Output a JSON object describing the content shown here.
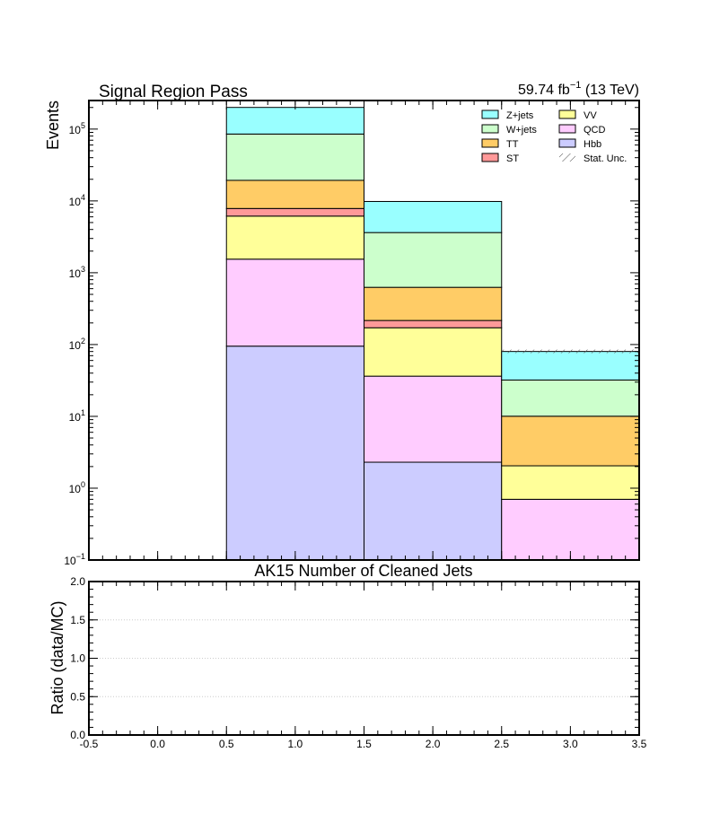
{
  "chart_data": [
    {
      "type": "bar",
      "stacked": true,
      "histogram": true,
      "title": "Signal Region Pass",
      "luminosity": "59.74 fb",
      "luminosity_exponent": "−1",
      "energy": "(13 TeV)",
      "ylabel": "Events",
      "xlabel": "AK15 Number of Cleaned Jets",
      "yscale": "log",
      "ylim": [
        0.1,
        250000
      ],
      "xlim": [
        -0.5,
        3.5
      ],
      "bin_edges": [
        -0.5,
        0.5,
        1.5,
        2.5,
        3.5
      ],
      "y_ticks": [
        {
          "value": 0.1,
          "base": "10",
          "exp": "−1"
        },
        {
          "value": 1,
          "base": "10",
          "exp": "0"
        },
        {
          "value": 10,
          "base": "10",
          "exp": "1"
        },
        {
          "value": 100,
          "base": "10",
          "exp": "2"
        },
        {
          "value": 1000,
          "base": "10",
          "exp": "3"
        },
        {
          "value": 10000,
          "base": "10",
          "exp": "4"
        },
        {
          "value": 100000,
          "base": "10",
          "exp": "5"
        }
      ],
      "series": [
        {
          "name": "Hbb",
          "color": "#ccccff",
          "values": [
            0,
            95,
            2.3,
            0
          ]
        },
        {
          "name": "QCD",
          "color": "#ffccff",
          "values": [
            0,
            1450,
            34,
            0.7
          ]
        },
        {
          "name": "VV",
          "color": "#ffff99",
          "values": [
            0,
            4600,
            135,
            1.35
          ]
        },
        {
          "name": "ST",
          "color": "#ff9999",
          "values": [
            0,
            1700,
            45,
            0
          ]
        },
        {
          "name": "TT",
          "color": "#ffcc66",
          "values": [
            0,
            11500,
            410,
            8
          ]
        },
        {
          "name": "W+jets",
          "color": "#ccffcc",
          "values": [
            0,
            66000,
            3000,
            22
          ]
        },
        {
          "name": "Z+jets",
          "color": "#99ffff",
          "values": [
            0,
            115000,
            6200,
            48
          ]
        }
      ],
      "stat_unc_label": "Stat. Unc.",
      "stat_unc_values": [
        0,
        0,
        0,
        5
      ],
      "legend": {
        "placement": "top-right",
        "columns": [
          [
            "Z+jets",
            "W+jets",
            "TT",
            "ST"
          ],
          [
            "VV",
            "QCD",
            "Hbb",
            "Stat. Unc."
          ]
        ]
      }
    },
    {
      "type": "line",
      "ylabel": "Ratio (data/MC)",
      "ylim": [
        0,
        2
      ],
      "xlim": [
        -0.5,
        3.5
      ],
      "y_ticks": [
        "0.0",
        "0.5",
        "1.0",
        "1.5",
        "2.0"
      ],
      "x_ticks": [
        "-0.5",
        "0.0",
        "0.5",
        "1.0",
        "1.5",
        "2.0",
        "2.5",
        "3.0",
        "3.5"
      ],
      "grid": true,
      "series": []
    }
  ]
}
